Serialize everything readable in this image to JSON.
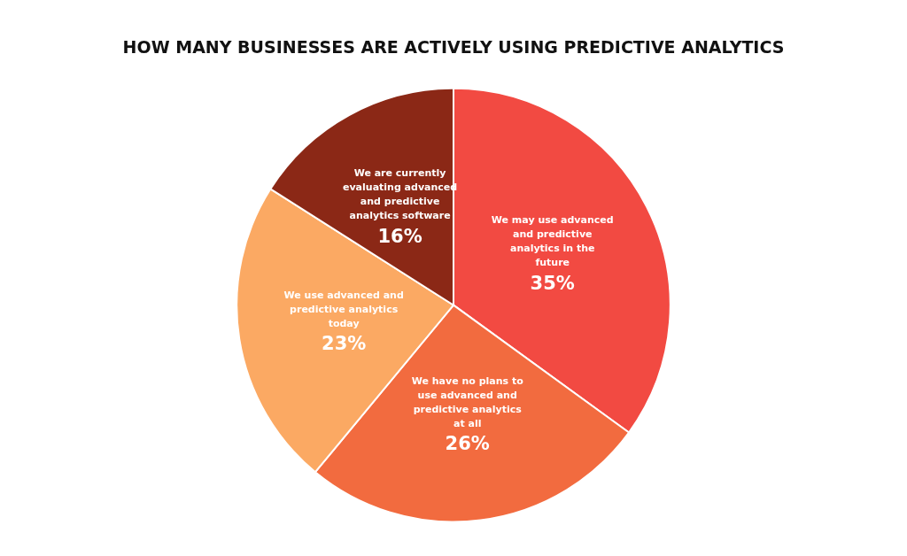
{
  "chart_data": {
    "type": "pie",
    "title": "HOW MANY BUSINESSES ARE ACTIVELY USING PREDICTIVE ANALYTICS",
    "categories": [
      "We may use advanced and predictive analytics in the future",
      "We have no plans to use advanced and predictive analytics at all",
      "We use advanced and predictive analytics today",
      "We are currently evaluating advanced and predictive analytics software"
    ],
    "values": [
      35,
      26,
      23,
      16
    ],
    "colors": [
      "#f24a42",
      "#f26b3f",
      "#fba963",
      "#8b2816"
    ],
    "value_labels": [
      "35%",
      "26%",
      "23%",
      "16%"
    ],
    "legend": false
  }
}
